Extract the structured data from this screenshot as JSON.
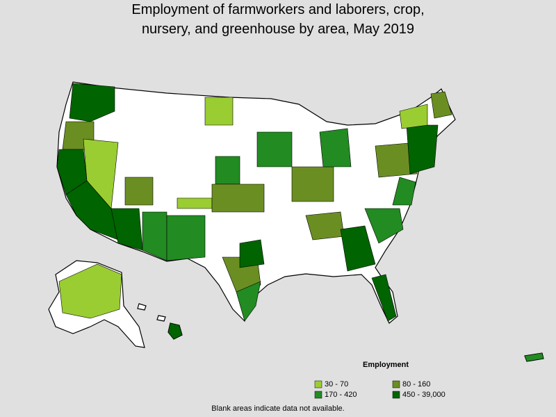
{
  "title_lines": [
    "Employment of farmworkers and laborers, crop,",
    "nursery, and greenhouse by area, May 2019"
  ],
  "legend": {
    "title": "Employment",
    "items": [
      {
        "label": "30 - 70",
        "color": "#9acd32"
      },
      {
        "label": "80 - 160",
        "color": "#6b8e23"
      },
      {
        "label": "170 - 420",
        "color": "#228b22"
      },
      {
        "label": "450 - 39,000",
        "color": "#006400"
      }
    ]
  },
  "footnote": "Blank areas indicate data not available."
}
